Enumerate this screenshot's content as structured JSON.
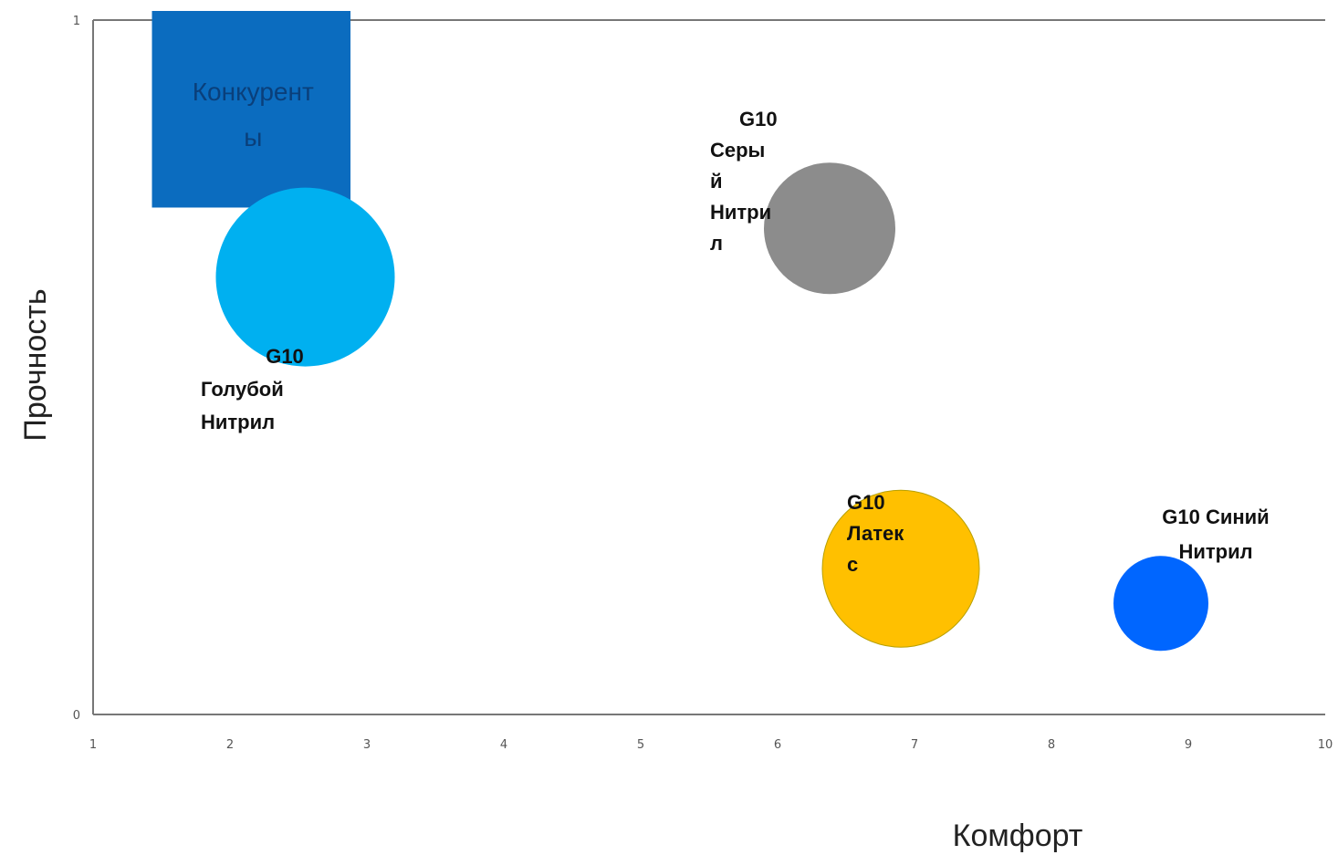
{
  "chart_data": {
    "type": "scatter",
    "xlabel": "Комфорт",
    "ylabel": "Прочность",
    "xlim": [
      1,
      10
    ],
    "ylim": [
      0,
      1
    ],
    "x_ticks": [
      "1",
      "2",
      "3",
      "4",
      "5",
      "6",
      "7",
      "8",
      "9",
      "10"
    ],
    "y_ticks": [
      "0",
      "1"
    ],
    "grid": false,
    "competitors": {
      "label_lines": [
        "Конкурент",
        "ы"
      ],
      "x_range": [
        1.43,
        2.88
      ],
      "y_range": [
        0.73,
        1.0
      ],
      "color": "#0b6cbf"
    },
    "points": [
      {
        "label_lines": [
          "G10",
          "Голубой",
          "Нитрил"
        ],
        "x": 2.55,
        "y": 0.63,
        "color": "#00b0f0"
      },
      {
        "label_lines": [
          "G10",
          "Серы",
          "й",
          "Нитри",
          "л"
        ],
        "x": 6.38,
        "y": 0.7,
        "color": "#8c8c8c"
      },
      {
        "label_lines": [
          "G10",
          "Латек",
          "с"
        ],
        "x": 6.9,
        "y": 0.21,
        "color": "#ffc000"
      },
      {
        "label_lines": [
          "G10 Синий",
          "Нитрил"
        ],
        "x": 8.8,
        "y": 0.16,
        "color": "#0066ff"
      }
    ]
  }
}
